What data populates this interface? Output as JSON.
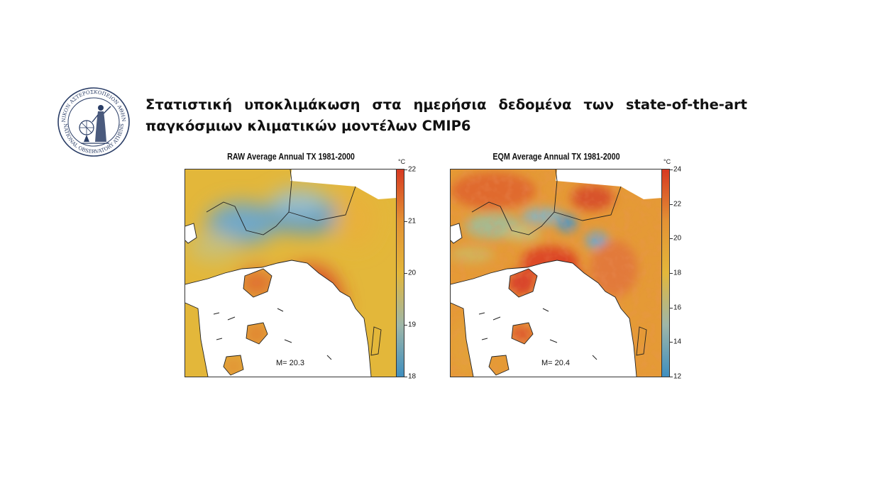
{
  "title": {
    "line1": "Στατιστική υποκλιμάκωση στα ημερήσια δεδομένα των state-of-the-art",
    "line2": "παγκόσμιων κλιματικών μοντέλων CMIP6"
  },
  "logo": {
    "name": "national-observatory-athens-seal",
    "text_top": "ΕΘΝΙΚΟΝ ΑΣΤΕΡΟΣΚΟΠΕΙΟΝ ΑΘΗΝΩΝ",
    "text_bottom": "NATIONAL OBSERVATORY ATHENS"
  },
  "maps": [
    {
      "title": "RAW Average Annual TX 1981-2000",
      "mean_label": "M= 20.3",
      "unit": "°C",
      "scale": {
        "min": 18,
        "max": 22,
        "ticks": [
          "22",
          "21",
          "20",
          "19",
          "18"
        ]
      },
      "colors": {
        "low": "#3f8fbf",
        "mid": "#e3b73a",
        "high": "#d73a22"
      }
    },
    {
      "title": "EQM Average Annual TX 1981-2000",
      "mean_label": "M= 20.4",
      "unit": "°C",
      "scale": {
        "min": 12,
        "max": 24,
        "ticks": [
          "24",
          "22",
          "20",
          "18",
          "16",
          "14",
          "12"
        ]
      },
      "colors": {
        "low": "#3f8fbf",
        "mid": "#e3b73a",
        "high": "#d73a22"
      }
    }
  ]
}
